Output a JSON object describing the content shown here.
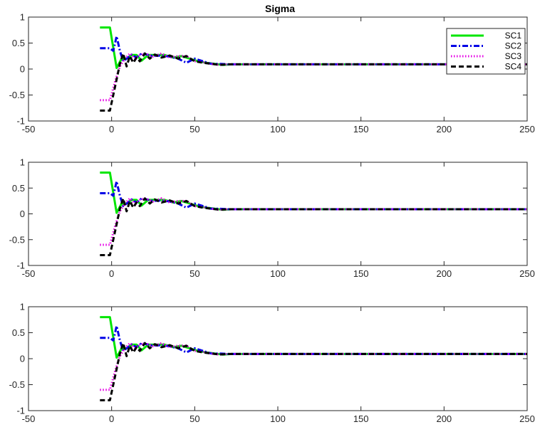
{
  "figure": {
    "title": "Sigma"
  },
  "chart_data": [
    {
      "type": "line",
      "title": "Sigma",
      "xlim": [
        -50,
        250
      ],
      "ylim": [
        -1,
        1
      ],
      "xticks": [
        -50,
        0,
        50,
        100,
        150,
        200,
        250
      ],
      "xtick_labels": [
        "-50",
        "0",
        "50",
        "100",
        "150",
        "200",
        "250"
      ],
      "yticks": [
        -1,
        -0.5,
        0,
        0.5,
        1
      ],
      "ytick_labels": [
        "-1",
        "-0.5",
        "0",
        "0.5",
        "1"
      ],
      "grid": false,
      "legend": {
        "placement": "top-right",
        "entries": [
          "SC1",
          "SC2",
          "SC3",
          "SC4"
        ]
      },
      "series": [
        {
          "name": "SC1",
          "color": "#00e600",
          "style": "solid",
          "x": [
            -7,
            -1,
            3,
            6,
            9,
            12,
            15,
            18,
            22,
            27,
            32,
            37,
            42,
            47,
            52,
            57,
            62,
            67,
            72,
            80,
            90,
            100,
            250
          ],
          "y": [
            0.8,
            0.8,
            0.02,
            0.2,
            0.2,
            0.27,
            0.27,
            0.16,
            0.27,
            0.27,
            0.27,
            0.22,
            0.25,
            0.2,
            0.15,
            0.12,
            0.1,
            0.08,
            0.09,
            0.09,
            0.09,
            0.09,
            0.09
          ]
        },
        {
          "name": "SC2",
          "color": "#0000e6",
          "style": "dashdot",
          "x": [
            -7,
            -1,
            1,
            3,
            5,
            7,
            9,
            12,
            15,
            18,
            21,
            25,
            30,
            35,
            40,
            45,
            50,
            55,
            60,
            65,
            70,
            80,
            90,
            100,
            250
          ],
          "y": [
            0.4,
            0.4,
            0.35,
            0.63,
            0.35,
            0.15,
            0.2,
            0.28,
            0.22,
            0.3,
            0.28,
            0.25,
            0.26,
            0.24,
            0.2,
            0.12,
            0.2,
            0.15,
            0.1,
            0.1,
            0.09,
            0.09,
            0.09,
            0.09,
            0.09
          ]
        },
        {
          "name": "SC3",
          "color": "#e600e6",
          "style": "dotted",
          "x": [
            -7,
            -1,
            2,
            5,
            8,
            11,
            14,
            17,
            20,
            25,
            30,
            35,
            40,
            45,
            50,
            55,
            60,
            65,
            70,
            80,
            90,
            100,
            250
          ],
          "y": [
            -0.6,
            -0.6,
            -0.25,
            0.05,
            0.2,
            0.3,
            0.2,
            0.27,
            0.3,
            0.24,
            0.3,
            0.22,
            0.25,
            0.25,
            0.15,
            0.13,
            0.1,
            0.08,
            0.09,
            0.09,
            0.09,
            0.09,
            0.09
          ]
        },
        {
          "name": "SC4",
          "color": "#000000",
          "style": "dashed",
          "x": [
            -7,
            -1,
            1,
            3,
            5,
            7,
            9,
            11,
            13,
            15,
            17,
            20,
            23,
            26,
            30,
            35,
            40,
            45,
            50,
            55,
            60,
            65,
            70,
            80,
            90,
            100,
            250
          ],
          "y": [
            -0.8,
            -0.8,
            -0.5,
            -0.2,
            0.1,
            0.3,
            0.05,
            0.25,
            0.12,
            0.22,
            0.15,
            0.3,
            0.2,
            0.28,
            0.22,
            0.26,
            0.2,
            0.25,
            0.15,
            0.12,
            0.1,
            0.08,
            0.09,
            0.09,
            0.09,
            0.09,
            0.09
          ]
        }
      ]
    },
    {
      "type": "line",
      "title": "",
      "xlim": [
        -50,
        250
      ],
      "ylim": [
        -1,
        1
      ],
      "xticks": [
        -50,
        0,
        50,
        100,
        150,
        200,
        250
      ],
      "xtick_labels": [
        "-50",
        "0",
        "50",
        "100",
        "150",
        "200",
        "250"
      ],
      "yticks": [
        -1,
        -0.5,
        0,
        0.5,
        1
      ],
      "ytick_labels": [
        "-1",
        "-0.5",
        "0",
        "0.5",
        "1"
      ],
      "grid": false,
      "series": [
        {
          "color": "#00e600",
          "style": "solid",
          "x": [
            -7,
            -1,
            3,
            6,
            9,
            12,
            15,
            18,
            22,
            27,
            32,
            37,
            42,
            47,
            52,
            57,
            62,
            67,
            72,
            80,
            90,
            100,
            250
          ],
          "y": [
            0.8,
            0.8,
            0.02,
            0.2,
            0.2,
            0.27,
            0.27,
            0.16,
            0.27,
            0.27,
            0.27,
            0.22,
            0.25,
            0.2,
            0.15,
            0.12,
            0.1,
            0.08,
            0.09,
            0.09,
            0.09,
            0.09,
            0.09
          ]
        },
        {
          "color": "#0000e6",
          "style": "dashdot",
          "x": [
            -7,
            -1,
            1,
            3,
            5,
            7,
            9,
            12,
            15,
            18,
            21,
            25,
            30,
            35,
            40,
            45,
            50,
            55,
            60,
            65,
            70,
            80,
            90,
            100,
            250
          ],
          "y": [
            0.4,
            0.4,
            0.35,
            0.63,
            0.35,
            0.15,
            0.2,
            0.28,
            0.22,
            0.3,
            0.28,
            0.25,
            0.26,
            0.24,
            0.2,
            0.12,
            0.2,
            0.15,
            0.1,
            0.1,
            0.09,
            0.09,
            0.09,
            0.09,
            0.09
          ]
        },
        {
          "color": "#e600e6",
          "style": "dotted",
          "x": [
            -7,
            -1,
            2,
            5,
            8,
            11,
            14,
            17,
            20,
            25,
            30,
            35,
            40,
            45,
            50,
            55,
            60,
            65,
            70,
            80,
            90,
            100,
            250
          ],
          "y": [
            -0.6,
            -0.6,
            -0.25,
            0.05,
            0.2,
            0.3,
            0.2,
            0.27,
            0.3,
            0.24,
            0.3,
            0.22,
            0.25,
            0.25,
            0.15,
            0.13,
            0.1,
            0.08,
            0.09,
            0.09,
            0.09,
            0.09,
            0.09
          ]
        },
        {
          "color": "#000000",
          "style": "dashed",
          "x": [
            -7,
            -1,
            1,
            3,
            5,
            7,
            9,
            11,
            13,
            15,
            17,
            20,
            23,
            26,
            30,
            35,
            40,
            45,
            50,
            55,
            60,
            65,
            70,
            80,
            90,
            100,
            250
          ],
          "y": [
            -0.8,
            -0.8,
            -0.5,
            -0.2,
            0.1,
            0.3,
            0.05,
            0.25,
            0.12,
            0.22,
            0.15,
            0.3,
            0.2,
            0.28,
            0.22,
            0.26,
            0.2,
            0.25,
            0.15,
            0.12,
            0.1,
            0.08,
            0.09,
            0.09,
            0.09,
            0.09,
            0.09
          ]
        }
      ]
    },
    {
      "type": "line",
      "title": "",
      "xlim": [
        -50,
        250
      ],
      "ylim": [
        -1,
        1
      ],
      "xticks": [
        -50,
        0,
        50,
        100,
        150,
        200,
        250
      ],
      "xtick_labels": [
        "-50",
        "0",
        "50",
        "100",
        "150",
        "200",
        "250"
      ],
      "yticks": [
        -1,
        -0.5,
        0,
        0.5,
        1
      ],
      "ytick_labels": [
        "-1",
        "-0.5",
        "0",
        "0.5",
        "1"
      ],
      "grid": false,
      "series": [
        {
          "color": "#00e600",
          "style": "solid",
          "x": [
            -7,
            -1,
            3,
            6,
            9,
            12,
            15,
            18,
            22,
            27,
            32,
            37,
            42,
            47,
            52,
            57,
            62,
            67,
            72,
            80,
            90,
            100,
            250
          ],
          "y": [
            0.8,
            0.8,
            0.02,
            0.2,
            0.2,
            0.27,
            0.27,
            0.16,
            0.27,
            0.27,
            0.27,
            0.22,
            0.25,
            0.2,
            0.15,
            0.12,
            0.1,
            0.08,
            0.09,
            0.09,
            0.09,
            0.09,
            0.09
          ]
        },
        {
          "color": "#0000e6",
          "style": "dashdot",
          "x": [
            -7,
            -1,
            1,
            3,
            5,
            7,
            9,
            12,
            15,
            18,
            21,
            25,
            30,
            35,
            40,
            45,
            50,
            55,
            60,
            65,
            70,
            80,
            90,
            100,
            250
          ],
          "y": [
            0.4,
            0.4,
            0.35,
            0.63,
            0.35,
            0.15,
            0.2,
            0.28,
            0.22,
            0.3,
            0.28,
            0.25,
            0.26,
            0.24,
            0.2,
            0.12,
            0.2,
            0.15,
            0.1,
            0.1,
            0.09,
            0.09,
            0.09,
            0.09,
            0.09
          ]
        },
        {
          "color": "#e600e6",
          "style": "dotted",
          "x": [
            -7,
            -1,
            2,
            5,
            8,
            11,
            14,
            17,
            20,
            25,
            30,
            35,
            40,
            45,
            50,
            55,
            60,
            65,
            70,
            80,
            90,
            100,
            250
          ],
          "y": [
            -0.6,
            -0.6,
            -0.25,
            0.05,
            0.2,
            0.3,
            0.2,
            0.27,
            0.3,
            0.24,
            0.3,
            0.22,
            0.25,
            0.25,
            0.15,
            0.13,
            0.1,
            0.08,
            0.09,
            0.09,
            0.09,
            0.09,
            0.09
          ]
        },
        {
          "color": "#000000",
          "style": "dashed",
          "x": [
            -7,
            -1,
            1,
            3,
            5,
            7,
            9,
            11,
            13,
            15,
            17,
            20,
            23,
            26,
            30,
            35,
            40,
            45,
            50,
            55,
            60,
            65,
            70,
            80,
            90,
            100,
            250
          ],
          "y": [
            -0.8,
            -0.8,
            -0.5,
            -0.2,
            0.1,
            0.3,
            0.05,
            0.25,
            0.12,
            0.22,
            0.15,
            0.3,
            0.2,
            0.28,
            0.22,
            0.26,
            0.2,
            0.25,
            0.15,
            0.12,
            0.1,
            0.08,
            0.09,
            0.09,
            0.09,
            0.09,
            0.09
          ]
        }
      ]
    }
  ]
}
